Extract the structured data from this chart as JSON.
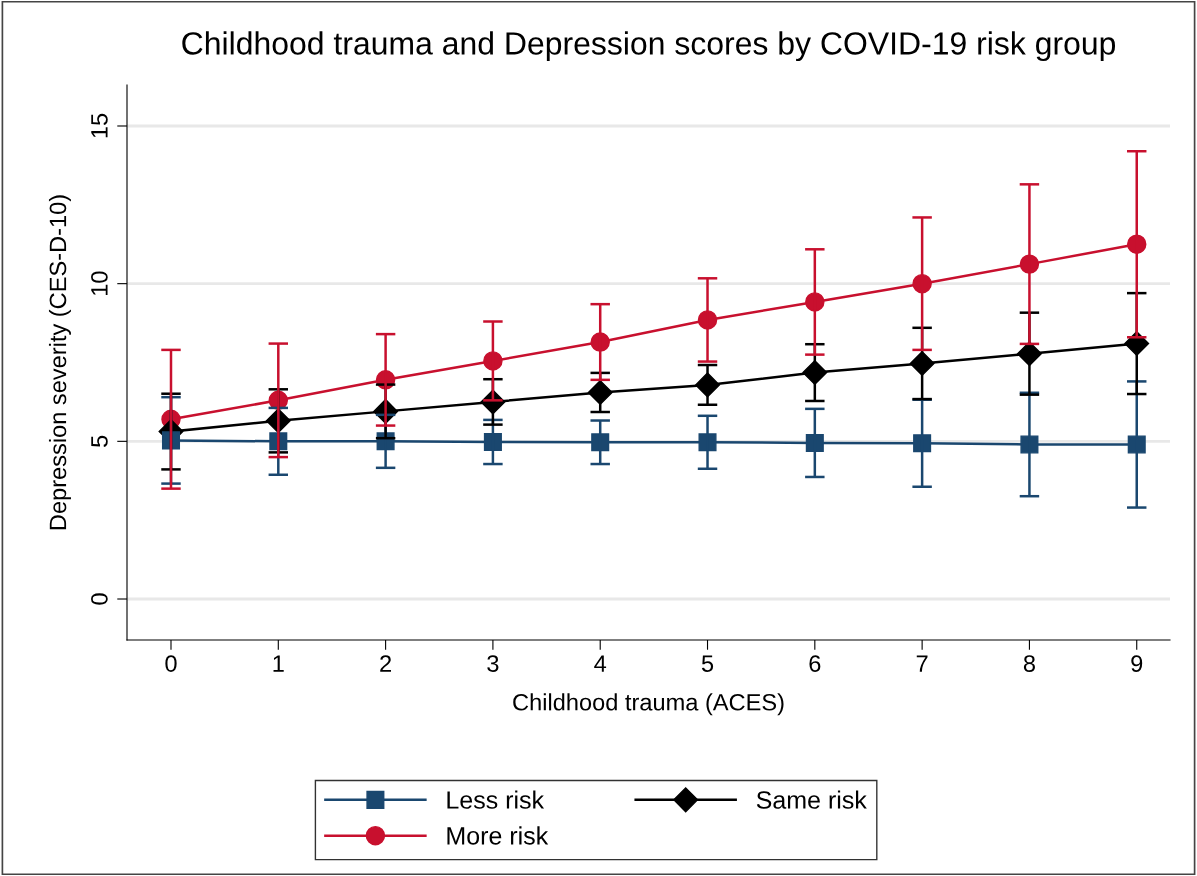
{
  "chart_data": {
    "type": "line",
    "title": "Childhood trauma and Depression scores by COVID-19 risk group",
    "xlabel": "Childhood trauma (ACES)",
    "ylabel": "Depression severity (CES-D-10)",
    "x": [
      0,
      1,
      2,
      3,
      4,
      5,
      6,
      7,
      8,
      9
    ],
    "series": [
      {
        "name": "Less risk",
        "color": "#1a476f",
        "marker": "square",
        "values": [
          5.03,
          5.0,
          5.0,
          4.98,
          4.97,
          4.97,
          4.95,
          4.94,
          4.9,
          4.9
        ],
        "errors": [
          1.37,
          1.06,
          0.84,
          0.7,
          0.69,
          0.84,
          1.08,
          1.38,
          1.64,
          2.0
        ]
      },
      {
        "name": "Same risk",
        "color": "#000000",
        "marker": "diamond",
        "values": [
          5.31,
          5.65,
          5.95,
          6.25,
          6.55,
          6.79,
          7.18,
          7.47,
          7.78,
          8.1
        ],
        "errors": [
          1.2,
          1.0,
          0.85,
          0.72,
          0.62,
          0.63,
          0.9,
          1.13,
          1.3,
          1.6
        ]
      },
      {
        "name": "More risk",
        "color": "#c8102e",
        "marker": "circle",
        "values": [
          5.7,
          6.3,
          6.95,
          7.55,
          8.15,
          8.85,
          9.42,
          10.0,
          10.62,
          11.25
        ],
        "errors": [
          2.2,
          1.8,
          1.45,
          1.25,
          1.2,
          1.32,
          1.67,
          2.1,
          2.53,
          2.95
        ]
      }
    ],
    "xlim": [
      -0.41,
      9.31
    ],
    "ylim": [
      -1.3,
      16.3
    ],
    "xticks": [
      0,
      1,
      2,
      3,
      4,
      5,
      6,
      7,
      8,
      9
    ],
    "yticks": [
      0,
      5,
      10,
      15
    ],
    "grid": "y",
    "legend": "bottom",
    "line_style": "solid"
  }
}
